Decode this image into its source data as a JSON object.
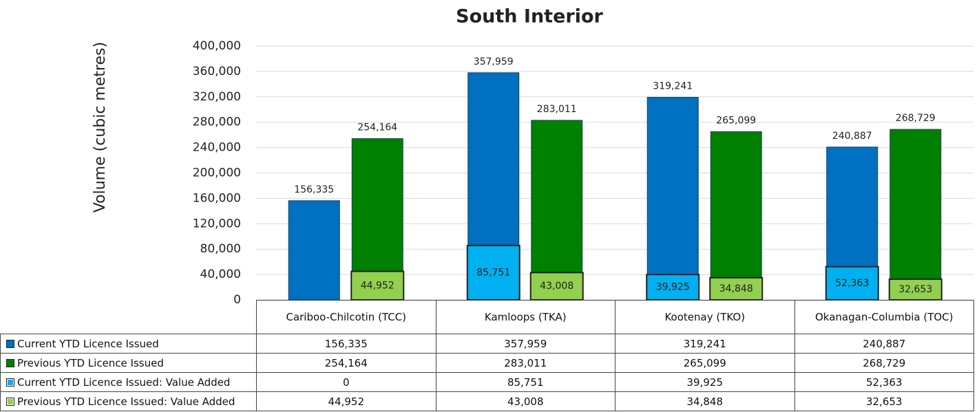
{
  "chart_data": {
    "type": "bar",
    "title": "South Interior",
    "y_label": "Volume (cubic metres)",
    "categories": [
      "Cariboo-Chilcotin (TCC)",
      "Kamloops (TKA)",
      "Kootenay (TKO)",
      "Okanagan-Columbia (TOC)"
    ],
    "series": [
      {
        "name": "Current YTD Licence Issued",
        "color": "#0070c0",
        "values": [
          156335,
          357959,
          319241,
          240887
        ],
        "value_labels": [
          "156,335",
          "357,959",
          "319,241",
          "240,887"
        ]
      },
      {
        "name": "Previous YTD Licence Issued",
        "color": "#008000",
        "values": [
          254164,
          283011,
          265099,
          268729
        ],
        "value_labels": [
          "254,164",
          "283,011",
          "265,099",
          "268,729"
        ]
      },
      {
        "name": "Current YTD Licence Issued: Value Added",
        "color": "#00b0f0",
        "values": [
          0,
          85751,
          39925,
          52363
        ],
        "value_labels": [
          "0",
          "85,751",
          "39,925",
          "52,363"
        ]
      },
      {
        "name": "Previous YTD Licence Issued: Value Added",
        "color": "#92d050",
        "values": [
          44952,
          43008,
          34848,
          32653
        ],
        "value_labels": [
          "44,952",
          "43,008",
          "34,848",
          "32,653"
        ]
      }
    ],
    "ylim": [
      0,
      400000
    ],
    "yticks": [
      0,
      {
        "value": 40000,
        "label": "40,000"
      },
      {
        "value": 80000,
        "label": "80,000"
      },
      {
        "value": 120000,
        "label": "120,000"
      },
      {
        "value": 160000,
        "label": "160,000"
      },
      {
        "value": 200000,
        "label": "200,000"
      },
      {
        "value": 240000,
        "label": "240,000"
      },
      {
        "value": 280000,
        "label": "280,000"
      },
      {
        "value": 320000,
        "label": "320,000"
      },
      {
        "value": 360000,
        "label": "360,000"
      },
      {
        "value": 400000,
        "label": "400,000"
      }
    ],
    "grid": true
  }
}
